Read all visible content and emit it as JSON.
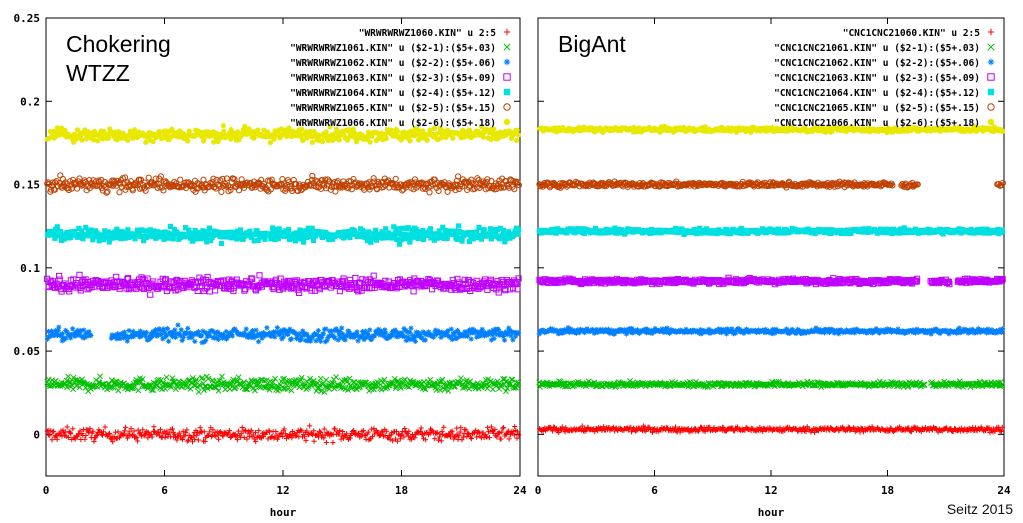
{
  "credit": "Seitz 2015",
  "chart_data": [
    {
      "type": "scatter",
      "title": "Chokering\nWTZZ",
      "xlabel": "hour",
      "ylabel": "",
      "xlim": [
        0,
        24
      ],
      "ylim": [
        -0.025,
        0.25
      ],
      "xticks": [
        0,
        6,
        12,
        18,
        24
      ],
      "yticks": [
        0,
        0.05,
        0.1,
        0.15,
        0.2,
        0.25
      ],
      "ytick_labels": [
        "0",
        "0.05",
        "0.1",
        "0.15",
        "0.2",
        "0.25"
      ],
      "grid": false,
      "legend_position": "top-right",
      "series": [
        {
          "name": "\"WRWRWRWZ1060.KIN\" u 2:5",
          "marker": "+",
          "color": "#ff0000",
          "level": 0.0,
          "noise": 0.004,
          "gaps": []
        },
        {
          "name": "\"WRWRWRWZ1061.KIN\" u ($2-1):($5+.03)",
          "marker": "x",
          "color": "#00c000",
          "level": 0.03,
          "noise": 0.004,
          "gaps": []
        },
        {
          "name": "\"WRWRWRWZ1062.KIN\" u ($2-2):($5+.06)",
          "marker": "*",
          "color": "#0080ff",
          "level": 0.06,
          "noise": 0.004,
          "gaps": [
            [
              2.3,
              3.3
            ]
          ]
        },
        {
          "name": "\"WRWRWRWZ1063.KIN\" u ($2-3):($5+.09)",
          "marker": "square",
          "color": "#c000ff",
          "level": 0.09,
          "noise": 0.004,
          "gaps": []
        },
        {
          "name": "\"WRWRWRWZ1064.KIN\" u ($2-4):($5+.12)",
          "marker": "filled-square",
          "color": "#00e0e0",
          "level": 0.12,
          "noise": 0.004,
          "gaps": []
        },
        {
          "name": "\"WRWRWRWZ1065.KIN\" u ($2-5):($5+.15)",
          "marker": "circle",
          "color": "#c04000",
          "level": 0.15,
          "noise": 0.004,
          "gaps": []
        },
        {
          "name": "\"WRWRWRWZ1066.KIN\" u ($2-6):($5+.18)",
          "marker": "filled-circle",
          "color": "#e8e800",
          "level": 0.18,
          "noise": 0.004,
          "gaps": []
        }
      ]
    },
    {
      "type": "scatter",
      "title": "BigAnt",
      "xlabel": "hour",
      "ylabel": "",
      "xlim": [
        0,
        24
      ],
      "ylim": [
        -0.025,
        0.25
      ],
      "xticks": [
        0,
        6,
        12,
        18,
        24
      ],
      "grid": false,
      "legend_position": "top-right",
      "series": [
        {
          "name": "\"CNC1CNC21060.KIN\" u 2:5",
          "marker": "+",
          "color": "#ff0000",
          "level": 0.003,
          "noise": 0.0015,
          "gaps": []
        },
        {
          "name": "\"CNC1CNC21061.KIN\" u ($2-1):($5+.03)",
          "marker": "x",
          "color": "#00c000",
          "level": 0.03,
          "noise": 0.0015,
          "gaps": [
            [
              19.9,
              20.2
            ]
          ]
        },
        {
          "name": "\"CNC1CNC21062.KIN\" u ($2-2):($5+.06)",
          "marker": "*",
          "color": "#0080ff",
          "level": 0.062,
          "noise": 0.0015,
          "gaps": []
        },
        {
          "name": "\"CNC1CNC21063.KIN\" u ($2-3):($5+.09)",
          "marker": "square",
          "color": "#c000ff",
          "level": 0.092,
          "noise": 0.0015,
          "gaps": [
            [
              19.6,
              20.2
            ],
            [
              21.2,
              21.6
            ]
          ]
        },
        {
          "name": "\"CNC1CNC21064.KIN\" u ($2-4):($5+.12)",
          "marker": "filled-square",
          "color": "#00e0e0",
          "level": 0.122,
          "noise": 0.0015,
          "gaps": []
        },
        {
          "name": "\"CNC1CNC21065.KIN\" u ($2-5):($5+.15)",
          "marker": "circle",
          "color": "#c04000",
          "level": 0.15,
          "noise": 0.0015,
          "gaps": [
            [
              18.3,
              18.7
            ],
            [
              19.6,
              23.6
            ]
          ]
        },
        {
          "name": "\"CNC1CNC21066.KIN\" u ($2-6):($5+.18)",
          "marker": "filled-circle",
          "color": "#e8e800",
          "level": 0.183,
          "noise": 0.0015,
          "gaps": []
        }
      ]
    }
  ]
}
